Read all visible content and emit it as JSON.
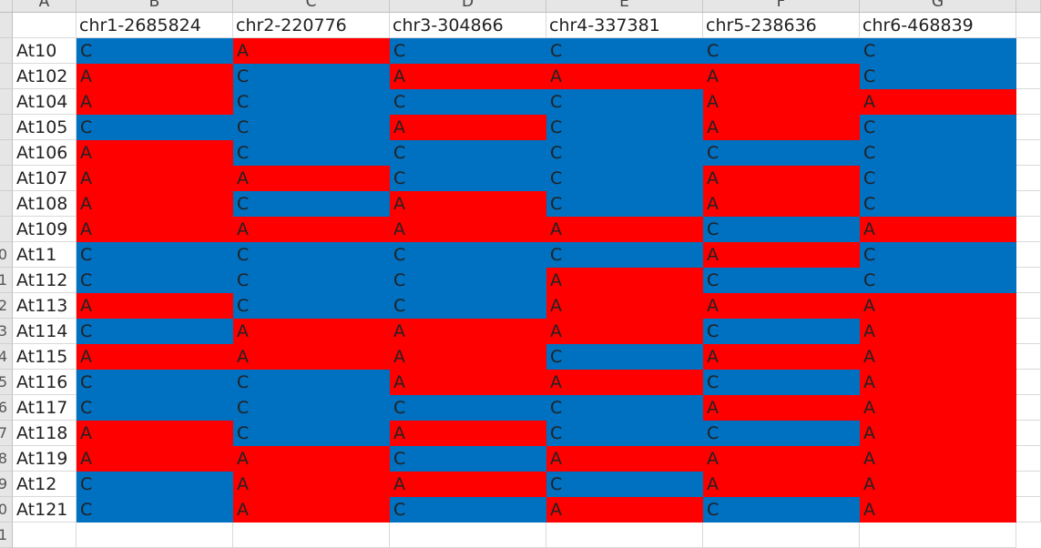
{
  "column_letters": [
    "A",
    "B",
    "C",
    "D",
    "E",
    "F",
    "G"
  ],
  "row_numbers": [
    "",
    "",
    "",
    "",
    "",
    "",
    "",
    "",
    "",
    "0",
    "1",
    "2",
    "3",
    "4",
    "5",
    "6",
    "7",
    "8",
    "9",
    "0",
    "1"
  ],
  "header_row": [
    "",
    "chr1-2685824",
    "chr2-220776",
    "chr3-304866",
    "chr4-337381",
    "chr5-238636",
    "chr6-468839"
  ],
  "rows": [
    {
      "name": "At10",
      "values": [
        "C",
        "A",
        "C",
        "C",
        "C",
        "C"
      ]
    },
    {
      "name": "At102",
      "values": [
        "A",
        "C",
        "A",
        "A",
        "A",
        "C"
      ]
    },
    {
      "name": "At104",
      "values": [
        "A",
        "C",
        "C",
        "C",
        "A",
        "A"
      ]
    },
    {
      "name": "At105",
      "values": [
        "C",
        "C",
        "A",
        "C",
        "A",
        "C"
      ]
    },
    {
      "name": "At106",
      "values": [
        "A",
        "C",
        "C",
        "C",
        "C",
        "C"
      ]
    },
    {
      "name": "At107",
      "values": [
        "A",
        "A",
        "C",
        "C",
        "A",
        "C"
      ]
    },
    {
      "name": "At108",
      "values": [
        "A",
        "C",
        "A",
        "C",
        "A",
        "C"
      ]
    },
    {
      "name": "At109",
      "values": [
        "A",
        "A",
        "A",
        "A",
        "C",
        "A"
      ]
    },
    {
      "name": "At11",
      "values": [
        "C",
        "C",
        "C",
        "C",
        "A",
        "C"
      ]
    },
    {
      "name": "At112",
      "values": [
        "C",
        "C",
        "C",
        "A",
        "C",
        "C"
      ]
    },
    {
      "name": "At113",
      "values": [
        "A",
        "C",
        "C",
        "A",
        "A",
        "A"
      ]
    },
    {
      "name": "At114",
      "values": [
        "C",
        "A",
        "A",
        "A",
        "C",
        "A"
      ]
    },
    {
      "name": "At115",
      "values": [
        "A",
        "A",
        "A",
        "C",
        "A",
        "A"
      ]
    },
    {
      "name": "At116",
      "values": [
        "C",
        "C",
        "A",
        "A",
        "C",
        "A"
      ]
    },
    {
      "name": "At117",
      "values": [
        "C",
        "C",
        "C",
        "C",
        "A",
        "A"
      ]
    },
    {
      "name": "At118",
      "values": [
        "A",
        "C",
        "A",
        "C",
        "C",
        "A"
      ]
    },
    {
      "name": "At119",
      "values": [
        "A",
        "A",
        "C",
        "A",
        "A",
        "A"
      ]
    },
    {
      "name": "At12",
      "values": [
        "C",
        "A",
        "A",
        "C",
        "A",
        "A"
      ]
    },
    {
      "name": "At121",
      "values": [
        "C",
        "A",
        "C",
        "A",
        "C",
        "A"
      ]
    }
  ],
  "colors": {
    "A": "#ff0000",
    "C": "#0070c0",
    "header_bg": "#e6e6e6",
    "gridline": "#d9d9d9"
  }
}
